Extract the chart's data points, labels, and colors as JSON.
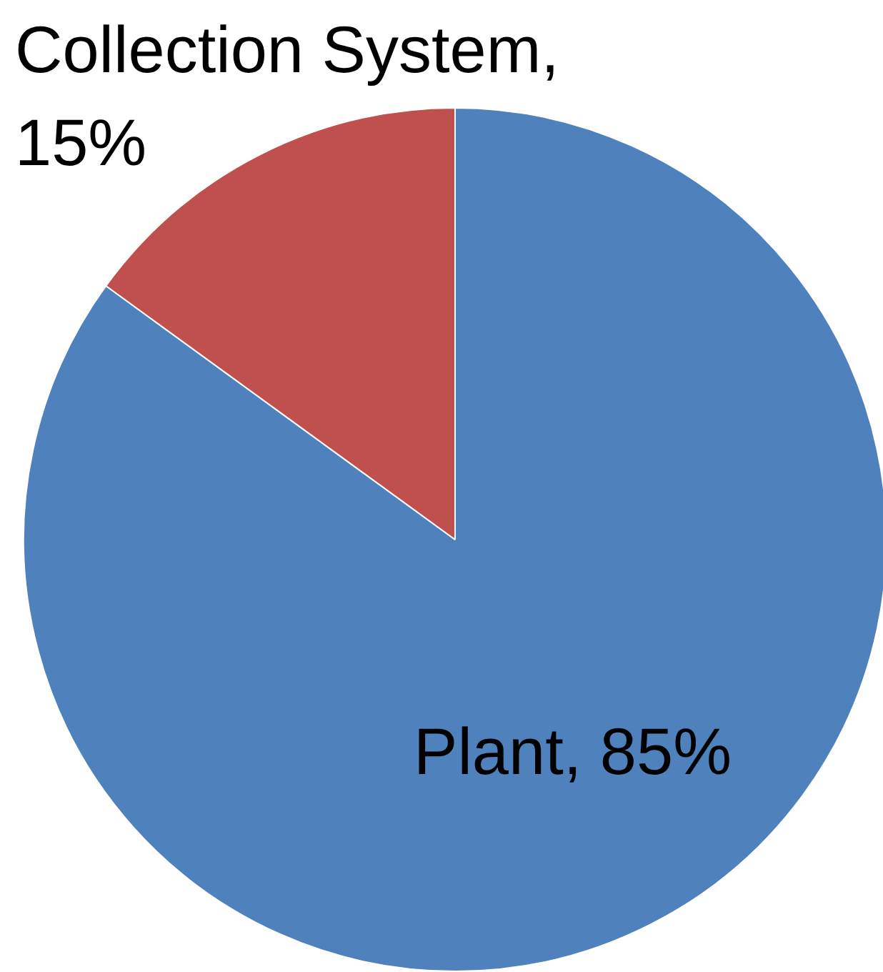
{
  "chart_data": {
    "type": "pie",
    "categories": [
      "Plant",
      "Collection System"
    ],
    "values": [
      85,
      15
    ],
    "colors": [
      "#4f81bd",
      "#c0504d"
    ],
    "value_labels": [
      ", 85%",
      ", 15%"
    ]
  }
}
